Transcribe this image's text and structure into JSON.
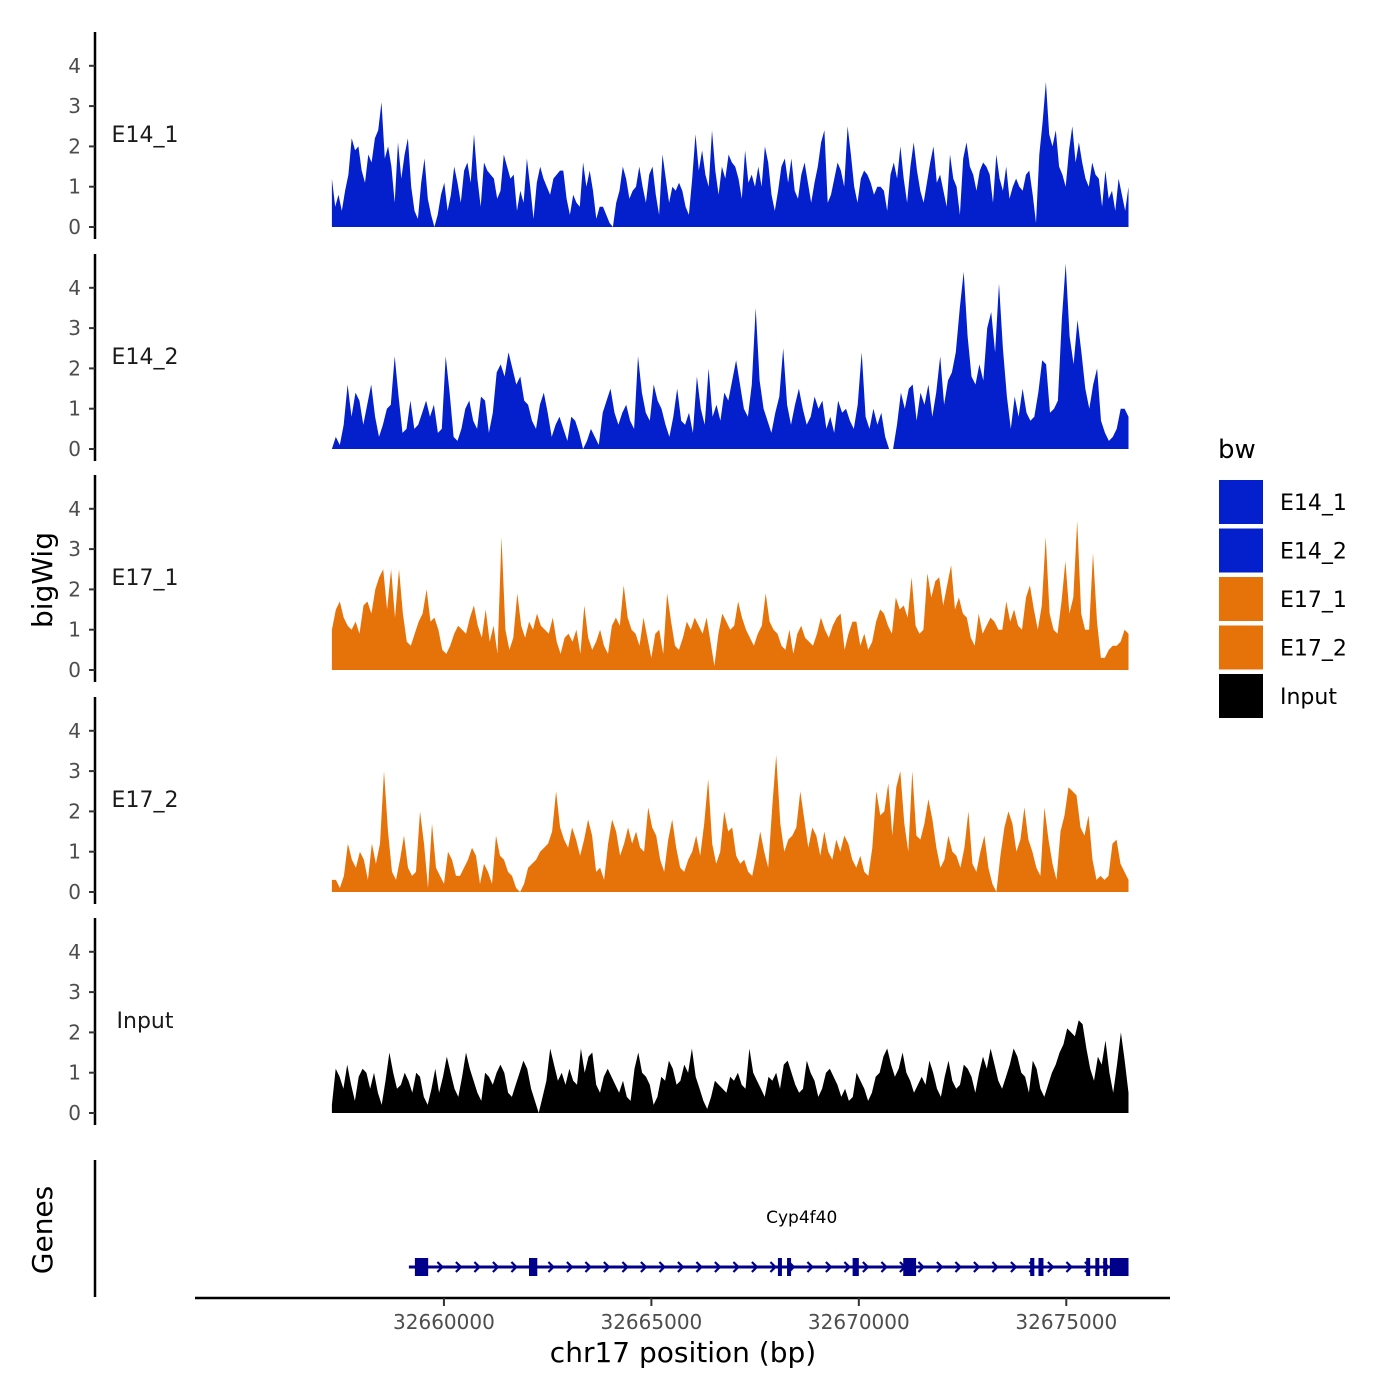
{
  "chart_data": {
    "type": "area",
    "title": "",
    "ylabel": "bigWig",
    "xlabel": "chr17 position (bp)",
    "genes_label": "Genes",
    "xlim": [
      32654000,
      32677500
    ],
    "x_start": 32657300,
    "x_end": 32676500,
    "x_ticks": [
      32660000,
      32665000,
      32670000,
      32675000
    ],
    "ylim": [
      0,
      4.8
    ],
    "y_ticks": [
      0,
      1,
      2,
      3,
      4
    ],
    "legend": {
      "title": "bw",
      "entries": [
        "E14_1",
        "E14_2",
        "E17_1",
        "E17_2",
        "Input"
      ]
    },
    "colors": {
      "E14_1": "#0320CC",
      "E14_2": "#0320CC",
      "E17_1": "#E6720A",
      "E17_2": "#E6720A",
      "Input": "#000000",
      "gene": "#00008B"
    },
    "series": [
      {
        "name": "E14_1",
        "values": [
          1.2,
          0.5,
          0.8,
          0.4,
          0.9,
          1.3,
          2.2,
          1.9,
          2.0,
          1.4,
          1.1,
          1.8,
          1.6,
          2.2,
          2.4,
          3.1,
          1.7,
          2.0,
          1.5,
          0.6,
          2.1,
          1.2,
          1.8,
          2.2,
          1.0,
          0.4,
          0.2,
          1.1,
          1.7,
          0.7,
          0.3,
          0.0,
          0.3,
          0.8,
          1.1,
          0.4,
          0.8,
          1.5,
          1.1,
          0.6,
          1.4,
          1.6,
          1.1,
          2.3,
          1.2,
          0.5,
          1.6,
          1.4,
          1.3,
          1.2,
          0.7,
          0.9,
          1.8,
          1.5,
          1.2,
          1.3,
          0.4,
          0.9,
          0.6,
          1.7,
          1.0,
          0.2,
          1.1,
          1.5,
          1.2,
          1.0,
          0.8,
          1.2,
          1.3,
          1.4,
          1.4,
          0.7,
          0.3,
          0.8,
          0.6,
          0.5,
          1.6,
          1.0,
          1.4,
          0.9,
          0.2,
          0.5,
          0.5,
          0.3,
          0.1,
          0.0,
          0.6,
          0.9,
          1.5,
          1.2,
          0.7,
          0.9,
          1.0,
          1.5,
          1.0,
          0.6,
          1.3,
          1.5,
          0.8,
          0.3,
          1.8,
          1.2,
          0.6,
          1.0,
          0.9,
          1.1,
          0.9,
          0.5,
          0.3,
          1.2,
          2.3,
          1.4,
          1.9,
          1.3,
          1.0,
          2.4,
          1.4,
          0.8,
          1.5,
          1.2,
          1.8,
          1.6,
          1.5,
          1.2,
          0.7,
          1.9,
          1.1,
          1.3,
          1.0,
          1.5,
          1.0,
          2.0,
          1.6,
          0.8,
          0.4,
          0.9,
          1.5,
          1.7,
          1.1,
          1.7,
          0.9,
          0.7,
          1.3,
          1.6,
          1.1,
          0.6,
          1.1,
          1.5,
          2.1,
          2.4,
          0.6,
          0.8,
          1.2,
          1.6,
          1.4,
          1.0,
          2.5,
          1.8,
          1.0,
          0.6,
          1.2,
          1.4,
          1.3,
          1.1,
          0.8,
          1.0,
          1.0,
          0.9,
          0.4,
          1.3,
          1.6,
          1.2,
          2.0,
          1.2,
          0.6,
          1.5,
          2.1,
          1.4,
          0.9,
          0.6,
          1.1,
          1.6,
          2.0,
          1.1,
          1.3,
          0.9,
          0.5,
          1.8,
          1.2,
          1.0,
          0.3,
          1.7,
          2.1,
          1.5,
          1.3,
          0.9,
          1.4,
          1.6,
          1.5,
          1.3,
          0.6,
          1.8,
          1.2,
          0.9,
          1.5,
          0.7,
          1.0,
          1.2,
          1.0,
          0.9,
          1.3,
          1.4,
          0.8,
          0.1,
          1.8,
          2.6,
          3.6,
          2.3,
          2.0,
          2.4,
          1.5,
          1.3,
          1.0,
          1.9,
          2.5,
          1.6,
          2.1,
          1.6,
          1.2,
          1.0,
          1.6,
          1.3,
          1.2,
          0.5,
          1.4,
          0.7,
          0.9,
          0.4,
          1.2,
          0.8,
          0.4,
          1.0
        ]
      },
      {
        "name": "E14_2",
        "values": [
          0.0,
          0.3,
          0.1,
          0.6,
          1.6,
          0.8,
          1.4,
          1.2,
          0.6,
          1.1,
          1.6,
          0.8,
          0.3,
          0.6,
          1.0,
          1.1,
          2.3,
          1.3,
          0.4,
          0.5,
          1.2,
          0.5,
          0.6,
          0.9,
          1.2,
          0.8,
          1.1,
          0.4,
          0.5,
          2.3,
          1.4,
          0.3,
          0.2,
          0.5,
          1.0,
          1.2,
          0.7,
          0.5,
          1.3,
          1.2,
          0.4,
          0.9,
          1.9,
          2.1,
          1.8,
          2.4,
          2.0,
          1.6,
          1.8,
          1.2,
          1.1,
          0.7,
          0.5,
          1.1,
          1.4,
          0.9,
          0.3,
          0.6,
          0.8,
          0.5,
          0.2,
          0.8,
          0.7,
          0.4,
          0.0,
          0.2,
          0.5,
          0.3,
          0.1,
          0.9,
          1.2,
          1.5,
          0.9,
          0.6,
          0.9,
          1.1,
          0.7,
          0.5,
          2.3,
          1.4,
          0.9,
          0.7,
          1.6,
          1.2,
          1.0,
          0.6,
          0.3,
          0.8,
          1.5,
          0.7,
          0.6,
          0.9,
          0.4,
          1.8,
          1.0,
          0.6,
          2.0,
          0.8,
          1.1,
          0.7,
          1.4,
          1.2,
          1.7,
          2.2,
          1.6,
          1.0,
          0.8,
          1.6,
          3.5,
          1.7,
          1.0,
          0.7,
          0.4,
          0.9,
          1.3,
          2.5,
          1.1,
          0.6,
          1.1,
          1.5,
          1.0,
          0.6,
          0.8,
          1.3,
          1.0,
          1.2,
          0.5,
          0.8,
          0.4,
          1.2,
          0.9,
          1.0,
          0.7,
          0.5,
          1.1,
          2.4,
          0.8,
          0.5,
          1.0,
          0.6,
          0.9,
          0.3,
          0.0,
          0.0,
          0.6,
          1.4,
          1.0,
          1.5,
          1.6,
          0.7,
          1.4,
          1.1,
          1.6,
          0.8,
          1.4,
          2.3,
          1.1,
          1.7,
          1.9,
          2.4,
          3.5,
          4.4,
          2.8,
          1.8,
          1.6,
          2.1,
          1.7,
          3.0,
          3.4,
          2.4,
          4.1,
          2.5,
          1.3,
          0.5,
          1.3,
          0.8,
          1.5,
          0.9,
          0.7,
          0.8,
          1.4,
          2.2,
          2.1,
          0.9,
          1.0,
          1.2,
          3.2,
          4.6,
          2.8,
          2.1,
          3.2,
          2.4,
          1.5,
          1.0,
          1.6,
          2.0,
          0.7,
          0.4,
          0.2,
          0.3,
          0.5,
          1.0,
          1.0,
          0.8
        ]
      },
      {
        "name": "E17_1",
        "values": [
          1.0,
          1.5,
          1.7,
          1.3,
          1.1,
          1.0,
          1.2,
          0.9,
          1.6,
          1.7,
          1.4,
          2.0,
          2.3,
          2.5,
          1.5,
          2.5,
          1.3,
          2.5,
          1.4,
          0.7,
          0.6,
          0.9,
          1.2,
          1.4,
          2.0,
          1.2,
          1.3,
          1.0,
          0.5,
          0.4,
          0.6,
          0.9,
          1.1,
          1.0,
          0.9,
          1.3,
          1.6,
          1.1,
          0.8,
          1.5,
          0.7,
          1.1,
          0.4,
          3.3,
          1.0,
          0.5,
          0.8,
          1.9,
          1.1,
          0.8,
          1.2,
          1.0,
          1.4,
          1.1,
          1.0,
          0.9,
          1.3,
          0.7,
          0.4,
          0.8,
          0.9,
          0.7,
          1.0,
          0.4,
          1.6,
          0.8,
          0.5,
          0.7,
          1.0,
          0.6,
          0.4,
          1.1,
          1.3,
          1.1,
          2.1,
          1.3,
          1.0,
          0.9,
          0.6,
          1.3,
          0.8,
          0.3,
          0.9,
          1.0,
          0.4,
          1.9,
          1.2,
          0.6,
          0.5,
          0.8,
          1.2,
          1.0,
          1.3,
          1.1,
          0.9,
          1.3,
          0.7,
          0.1,
          0.9,
          1.4,
          1.2,
          1.0,
          1.1,
          1.7,
          1.3,
          1.0,
          0.8,
          0.6,
          0.9,
          1.1,
          1.9,
          1.2,
          1.0,
          0.9,
          0.6,
          0.5,
          1.0,
          0.4,
          0.9,
          1.1,
          0.8,
          0.7,
          0.6,
          0.9,
          1.3,
          1.0,
          0.8,
          1.1,
          1.3,
          1.4,
          0.5,
          0.9,
          1.2,
          1.2,
          0.6,
          0.9,
          0.5,
          0.7,
          1.2,
          1.5,
          1.4,
          1.1,
          0.9,
          1.8,
          1.5,
          1.6,
          1.3,
          2.3,
          1.1,
          0.9,
          1.0,
          2.4,
          1.8,
          2.2,
          2.3,
          1.6,
          2.1,
          2.6,
          1.5,
          1.8,
          1.4,
          1.3,
          0.8,
          0.6,
          1.4,
          0.9,
          1.1,
          1.3,
          1.2,
          1.0,
          1.0,
          1.7,
          1.2,
          1.5,
          1.1,
          1.0,
          1.8,
          2.1,
          1.5,
          1.0,
          1.6,
          3.3,
          1.4,
          1.0,
          0.9,
          1.7,
          2.7,
          1.4,
          1.8,
          3.7,
          1.4,
          1.0,
          1.0,
          2.9,
          1.2,
          0.3,
          0.3,
          0.5,
          0.6,
          0.6,
          0.7,
          1.0,
          0.9
        ]
      },
      {
        "name": "E17_2",
        "values": [
          0.3,
          0.3,
          0.1,
          0.4,
          1.2,
          0.8,
          0.6,
          1.0,
          0.8,
          0.3,
          1.2,
          0.7,
          1.2,
          3.0,
          1.5,
          0.5,
          0.3,
          0.8,
          1.4,
          0.6,
          0.4,
          0.5,
          2.0,
          1.2,
          0.1,
          1.7,
          0.6,
          0.4,
          0.2,
          1.0,
          0.8,
          0.4,
          0.4,
          0.6,
          0.8,
          1.1,
          0.9,
          0.2,
          0.7,
          0.5,
          0.2,
          1.4,
          0.9,
          0.8,
          0.5,
          0.4,
          0.1,
          0.0,
          0.2,
          0.6,
          0.7,
          0.8,
          1.0,
          1.1,
          1.2,
          1.5,
          2.5,
          1.6,
          1.3,
          1.1,
          1.6,
          1.3,
          0.9,
          1.3,
          1.8,
          1.4,
          0.5,
          0.6,
          0.3,
          1.2,
          1.8,
          1.5,
          0.9,
          1.2,
          1.6,
          1.2,
          1.5,
          1.1,
          1.0,
          2.1,
          1.6,
          1.4,
          0.8,
          0.5,
          1.3,
          1.8,
          1.1,
          0.6,
          0.5,
          0.8,
          1.0,
          1.4,
          0.9,
          1.7,
          2.8,
          1.2,
          0.7,
          1.0,
          2.0,
          1.5,
          1.6,
          0.9,
          0.7,
          0.8,
          0.5,
          0.4,
          0.9,
          1.5,
          1.0,
          0.6,
          2.1,
          3.4,
          1.7,
          1.0,
          1.3,
          1.4,
          1.6,
          2.5,
          1.8,
          1.1,
          1.6,
          1.4,
          0.9,
          1.5,
          1.0,
          0.8,
          1.3,
          1.0,
          1.4,
          1.2,
          0.8,
          0.6,
          0.9,
          0.5,
          0.4,
          1.1,
          2.5,
          1.9,
          2.0,
          2.7,
          1.4,
          2.6,
          3.0,
          1.7,
          1.0,
          3.0,
          1.4,
          1.3,
          1.7,
          2.3,
          1.8,
          1.1,
          0.6,
          0.8,
          1.4,
          1.0,
          0.9,
          0.6,
          1.1,
          2.0,
          0.7,
          0.5,
          1.0,
          1.4,
          0.6,
          0.2,
          0.0,
          0.9,
          1.6,
          2.0,
          1.7,
          1.0,
          1.3,
          2.1,
          1.3,
          1.0,
          0.6,
          0.4,
          2.1,
          1.3,
          0.7,
          0.3,
          1.5,
          1.9,
          2.6,
          2.5,
          2.4,
          1.6,
          1.4,
          1.9,
          0.8,
          0.3,
          0.4,
          0.3,
          0.4,
          1.2,
          1.3,
          0.7,
          0.5,
          0.3
        ]
      },
      {
        "name": "Input",
        "values": [
          0.2,
          1.1,
          0.9,
          0.6,
          1.2,
          0.7,
          0.3,
          0.9,
          1.1,
          1.0,
          0.6,
          1.0,
          0.5,
          0.2,
          0.8,
          1.5,
          1.0,
          0.6,
          0.7,
          1.0,
          0.8,
          0.5,
          1.0,
          0.9,
          0.4,
          0.2,
          0.6,
          1.1,
          0.5,
          0.9,
          1.4,
          1.0,
          0.6,
          0.4,
          0.9,
          1.5,
          1.1,
          0.8,
          0.5,
          0.3,
          1.0,
          0.9,
          0.7,
          1.0,
          1.2,
          1.0,
          0.5,
          0.4,
          0.7,
          1.0,
          1.3,
          1.1,
          0.6,
          0.3,
          0.0,
          0.4,
          0.8,
          1.6,
          1.2,
          0.8,
          1.0,
          0.7,
          1.1,
          0.8,
          0.7,
          1.6,
          1.0,
          1.4,
          1.5,
          0.7,
          0.5,
          0.9,
          1.1,
          0.9,
          0.7,
          0.5,
          0.8,
          0.4,
          0.3,
          1.1,
          1.5,
          1.0,
          0.9,
          0.7,
          0.2,
          0.4,
          0.9,
          0.8,
          1.3,
          1.1,
          0.7,
          0.8,
          1.2,
          1.0,
          1.6,
          0.9,
          0.6,
          0.3,
          0.1,
          0.4,
          0.8,
          0.7,
          0.6,
          0.5,
          0.9,
          0.8,
          1.0,
          0.7,
          0.6,
          1.6,
          1.0,
          0.8,
          0.6,
          0.4,
          0.9,
          0.8,
          1.0,
          0.6,
          1.2,
          1.3,
          1.0,
          0.7,
          0.5,
          0.6,
          1.3,
          1.0,
          0.8,
          0.4,
          0.6,
          1.0,
          1.1,
          0.9,
          0.7,
          0.4,
          0.6,
          0.3,
          0.4,
          1.0,
          0.8,
          0.6,
          0.3,
          0.5,
          0.9,
          1.0,
          1.4,
          1.6,
          1.2,
          0.9,
          1.1,
          1.5,
          1.0,
          0.8,
          0.5,
          0.7,
          0.9,
          0.7,
          1.3,
          1.0,
          0.6,
          0.4,
          0.9,
          1.3,
          0.8,
          0.6,
          0.7,
          1.2,
          1.1,
          0.9,
          0.5,
          1.0,
          1.4,
          1.1,
          1.6,
          1.2,
          0.8,
          0.6,
          0.9,
          1.2,
          1.6,
          1.4,
          1.0,
          0.9,
          0.5,
          1.3,
          1.1,
          0.6,
          0.4,
          0.7,
          1.0,
          1.2,
          1.5,
          1.7,
          2.1,
          2.0,
          1.9,
          2.3,
          2.2,
          1.6,
          1.1,
          0.8,
          1.4,
          1.2,
          1.8,
          1.0,
          0.5,
          1.2,
          2.0,
          1.3,
          0.5
        ]
      }
    ],
    "genes": [
      {
        "name": "Cyp4f40",
        "strand": "+",
        "start": 32659300,
        "end": 32676500,
        "exons": [
          [
            32659300,
            32659620
          ],
          [
            32662050,
            32662250
          ],
          [
            32668050,
            32668130
          ],
          [
            32668270,
            32668350
          ],
          [
            32669850,
            32670000
          ],
          [
            32671070,
            32671380
          ],
          [
            32674130,
            32674230
          ],
          [
            32674330,
            32674450
          ],
          [
            32675480,
            32675560
          ],
          [
            32675700,
            32675780
          ],
          [
            32675890,
            32675970
          ],
          [
            32676050,
            32676500
          ]
        ]
      }
    ]
  }
}
